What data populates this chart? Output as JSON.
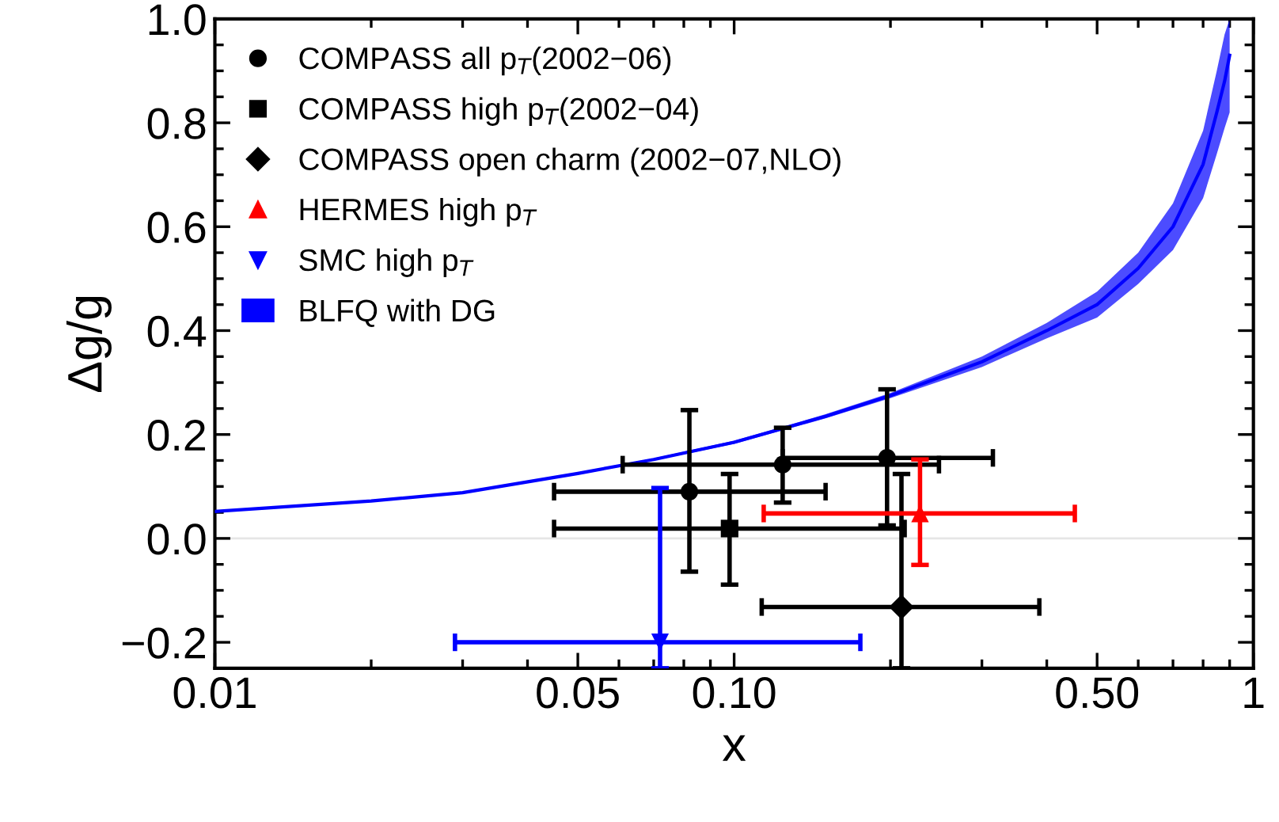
{
  "chart_data": {
    "type": "scatter",
    "xlabel": "x",
    "ylabel": "Δg/g",
    "log": "x",
    "xlim": [
      0.01,
      1
    ],
    "xticks": [
      0.01,
      0.05,
      {
        "value": 0.1,
        "label": "0.10"
      },
      {
        "value": 0.5,
        "label": "0.50"
      },
      1
    ],
    "ylim": [
      -0.25,
      1.0
    ],
    "yticks": [
      {
        "value": -0.2,
        "label": "−0.2"
      },
      {
        "value": 0,
        "label": "0.0"
      },
      0.2,
      0.4,
      0.6,
      0.8,
      {
        "value": 1,
        "label": "1.0"
      }
    ],
    "grid": false,
    "legend": "top left",
    "ref_lines": [
      {
        "axis": "y",
        "value": 0,
        "color": "#e6e6e6",
        "line_style": "solid"
      }
    ],
    "series": [
      {
        "name": "COMPASS all p$_{T}$(2002−06)",
        "color": "#000000",
        "marker": "circle",
        "x": [
          0.082,
          0.124,
          0.197
        ],
        "values": [
          0.09,
          0.142,
          0.155
        ],
        "errors": [
          [
            -0.064,
            0.247
          ],
          [
            0.069,
            0.213
          ],
          [
            0.025,
            0.287
          ]
        ],
        "xerrors": [
          [
            0.045,
            0.15
          ],
          [
            0.061,
            0.248
          ],
          [
            0.124,
            0.315
          ]
        ]
      },
      {
        "name": "COMPASS high p$_{T}$(2002−04)",
        "color": "#000000",
        "marker": "square",
        "x": [
          0.098
        ],
        "values": [
          0.019
        ],
        "errors": [
          [
            -0.089,
            0.124
          ]
        ],
        "xerrors": [
          [
            0.045,
            0.213
          ]
        ]
      },
      {
        "name": "COMPASS open charm (2002−07,NLO)",
        "color": "#000000",
        "marker": "diamond",
        "x": [
          0.21
        ],
        "values": [
          -0.132
        ],
        "errors": [
          [
            -0.25,
            0.124
          ]
        ],
        "xerrors": [
          [
            0.113,
            0.387
          ]
        ]
      },
      {
        "name": "HERMES high p$_{T}$",
        "color": "#ff0000",
        "marker": "triangle",
        "x": [
          0.228
        ],
        "values": [
          0.048
        ],
        "errors": [
          [
            -0.051,
            0.152
          ]
        ],
        "xerrors": [
          [
            0.114,
            0.453
          ]
        ]
      },
      {
        "name": "SMC high p$_{T}$",
        "color": "#0000ff",
        "marker": "triangle-down",
        "x": [
          0.072
        ],
        "values": [
          -0.2
        ],
        "errors": [
          [
            -0.25,
            0.097
          ]
        ],
        "xerrors": [
          [
            0.029,
            0.175
          ]
        ]
      },
      {
        "name": "BLFQ with DG",
        "type": "line",
        "color": "#0000ff",
        "x": [
          0.01,
          0.02,
          0.03,
          0.05,
          0.07,
          0.1,
          0.15,
          0.2,
          0.3,
          0.4,
          0.5,
          0.6,
          0.7,
          0.8,
          0.85,
          0.88,
          0.9
        ],
        "values": [
          0.052,
          0.072,
          0.088,
          0.125,
          0.152,
          0.185,
          0.235,
          0.275,
          0.34,
          0.4,
          0.45,
          0.52,
          0.6,
          0.72,
          0.82,
          0.88,
          0.93
        ],
        "lower": [
          0.051,
          0.071,
          0.087,
          0.123,
          0.15,
          0.182,
          0.231,
          0.27,
          0.33,
          0.385,
          0.425,
          0.49,
          0.555,
          0.655,
          0.74,
          0.79,
          0.82
        ],
        "upper": [
          0.053,
          0.073,
          0.089,
          0.127,
          0.154,
          0.188,
          0.239,
          0.28,
          0.35,
          0.415,
          0.475,
          0.55,
          0.645,
          0.785,
          0.9,
          0.97,
          1.0
        ]
      }
    ]
  }
}
